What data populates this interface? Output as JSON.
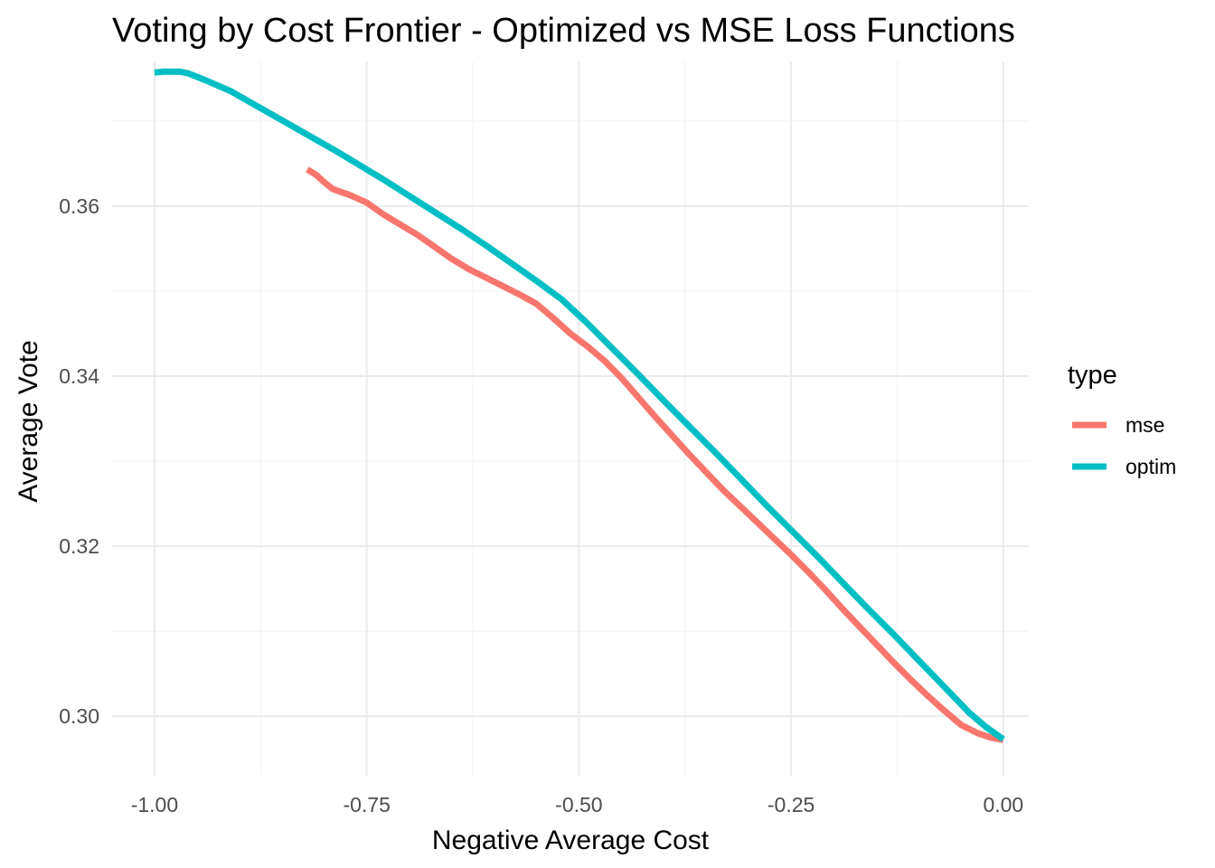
{
  "chart_data": {
    "type": "line",
    "title": "Voting by Cost Frontier - Optimized vs MSE Loss Functions",
    "xlabel": "Negative Average Cost",
    "ylabel": "Average Vote",
    "xlim": [
      -1.05,
      0.03
    ],
    "ylim": [
      0.293,
      0.377
    ],
    "x_ticks": [
      -1.0,
      -0.75,
      -0.5,
      -0.25,
      0.0
    ],
    "x_tick_labels": [
      "-1.00",
      "-0.75",
      "-0.50",
      "-0.25",
      "0.00"
    ],
    "y_ticks": [
      0.3,
      0.32,
      0.34,
      0.36
    ],
    "y_tick_labels": [
      "0.30",
      "0.32",
      "0.34",
      "0.36"
    ],
    "grid": true,
    "legend": {
      "title": "type",
      "position": "right"
    },
    "series": [
      {
        "name": "mse",
        "color": "#F8766D",
        "x": [
          -0.82,
          -0.81,
          -0.8,
          -0.79,
          -0.77,
          -0.75,
          -0.73,
          -0.71,
          -0.69,
          -0.67,
          -0.65,
          -0.63,
          -0.61,
          -0.59,
          -0.57,
          -0.55,
          -0.53,
          -0.51,
          -0.49,
          -0.47,
          -0.45,
          -0.43,
          -0.41,
          -0.39,
          -0.37,
          -0.35,
          -0.33,
          -0.31,
          -0.29,
          -0.27,
          -0.25,
          -0.23,
          -0.21,
          -0.19,
          -0.17,
          -0.15,
          -0.13,
          -0.11,
          -0.09,
          -0.07,
          -0.05,
          -0.03,
          -0.015,
          0.0
        ],
        "y": [
          0.3643,
          0.3637,
          0.3628,
          0.362,
          0.3613,
          0.3604,
          0.359,
          0.3578,
          0.3566,
          0.3552,
          0.3538,
          0.3526,
          0.3516,
          0.3506,
          0.3496,
          0.3485,
          0.3468,
          0.345,
          0.3435,
          0.3418,
          0.3398,
          0.3375,
          0.3352,
          0.333,
          0.3308,
          0.3287,
          0.3266,
          0.3247,
          0.3228,
          0.3209,
          0.319,
          0.317,
          0.3149,
          0.3127,
          0.3106,
          0.3085,
          0.3064,
          0.3044,
          0.3025,
          0.3007,
          0.299,
          0.298,
          0.2975,
          0.2972
        ]
      },
      {
        "name": "optim",
        "color": "#00BFC4",
        "x": [
          -1.0,
          -0.99,
          -0.98,
          -0.97,
          -0.96,
          -0.94,
          -0.91,
          -0.88,
          -0.85,
          -0.82,
          -0.79,
          -0.76,
          -0.73,
          -0.7,
          -0.67,
          -0.64,
          -0.61,
          -0.58,
          -0.55,
          -0.52,
          -0.49,
          -0.46,
          -0.43,
          -0.4,
          -0.37,
          -0.34,
          -0.31,
          -0.28,
          -0.25,
          -0.22,
          -0.19,
          -0.16,
          -0.13,
          -0.1,
          -0.07,
          -0.04,
          -0.02,
          0.0
        ],
        "y": [
          0.3757,
          0.3758,
          0.3758,
          0.3758,
          0.3756,
          0.3748,
          0.3735,
          0.3718,
          0.3701,
          0.3684,
          0.3667,
          0.3649,
          0.3631,
          0.3612,
          0.3593,
          0.3574,
          0.3554,
          0.3533,
          0.3512,
          0.349,
          0.3462,
          0.3432,
          0.3402,
          0.3371,
          0.3341,
          0.3311,
          0.328,
          0.3249,
          0.3219,
          0.3189,
          0.3158,
          0.3127,
          0.3097,
          0.3066,
          0.3035,
          0.3004,
          0.2987,
          0.2973
        ]
      }
    ]
  }
}
